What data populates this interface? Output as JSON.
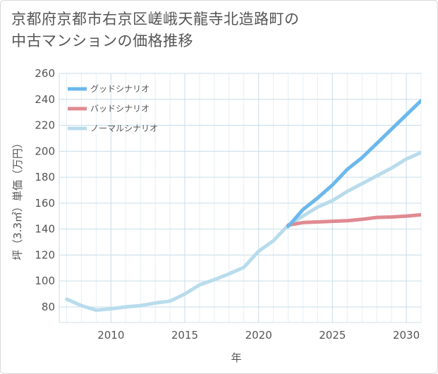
{
  "title_line1": "京都府京都市右京区嵯峨天龍寺北造路町の",
  "title_line2": "中古マンションの価格推移",
  "chart_data": {
    "type": "line",
    "title": "京都府京都市右京区嵯峨天龍寺北造路町の中古マンションの価格推移",
    "xlabel": "年",
    "ylabel": "坪（3.3㎡）単価（万円）",
    "xlim": [
      2006.5,
      2031
    ],
    "ylim": [
      68,
      260
    ],
    "xticks": [
      2010,
      2015,
      2020,
      2025,
      2030
    ],
    "yticks": [
      80,
      100,
      120,
      140,
      160,
      180,
      200,
      220,
      240,
      260
    ],
    "grid": true,
    "legend_position": "top-left",
    "series": [
      {
        "name": "グッドシナリオ",
        "color": "#6bb8ec",
        "x": [
          2022,
          2023,
          2024,
          2025,
          2026,
          2027,
          2028,
          2029,
          2030,
          2031
        ],
        "y": [
          142,
          155,
          164,
          174,
          186,
          195,
          206,
          217,
          228,
          239
        ]
      },
      {
        "name": "バッドシナリオ",
        "color": "#e08a92",
        "x": [
          2022,
          2023,
          2024,
          2025,
          2026,
          2027,
          2028,
          2029,
          2030,
          2031
        ],
        "y": [
          143,
          145,
          145.5,
          146,
          146.5,
          147.5,
          149,
          149.3,
          150,
          151
        ]
      },
      {
        "name": "ノーマルシナリオ",
        "color": "#b8dcec",
        "x": [
          2007,
          2008,
          2009,
          2010,
          2011,
          2012,
          2013,
          2014,
          2015,
          2016,
          2017,
          2018,
          2019,
          2020,
          2021,
          2022,
          2023,
          2024,
          2025,
          2026,
          2027,
          2028,
          2029,
          2030,
          2031
        ],
        "y": [
          86,
          81,
          77.5,
          78.5,
          80,
          81,
          83,
          84.5,
          90,
          97,
          101,
          105.5,
          110.5,
          123,
          131,
          143,
          150,
          157,
          162,
          169,
          175,
          181,
          187,
          194,
          199
        ]
      }
    ]
  }
}
